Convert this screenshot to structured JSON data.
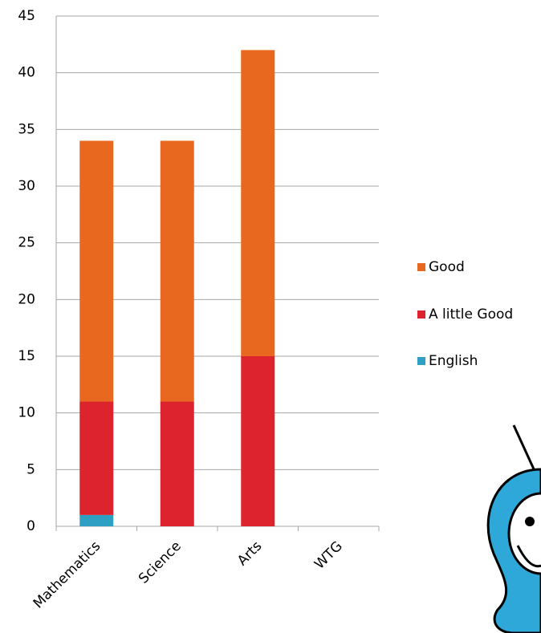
{
  "chart_data": {
    "type": "stacked_bar",
    "categories": [
      "Mathematics",
      "Science",
      "Arts",
      "WTG"
    ],
    "series": [
      {
        "name": "English",
        "color": "#2ea0c4",
        "values": [
          1,
          0,
          0,
          0
        ]
      },
      {
        "name": "A little Good",
        "color": "#dc232e",
        "values": [
          10,
          11,
          15,
          0
        ]
      },
      {
        "name": "Good",
        "color": "#e8681f",
        "values": [
          23,
          23,
          27,
          0
        ]
      }
    ],
    "ylim": [
      0,
      45
    ],
    "yticks": [
      0,
      5,
      10,
      15,
      20,
      25,
      30,
      35,
      40,
      45
    ],
    "grid": true,
    "legend": "right"
  }
}
